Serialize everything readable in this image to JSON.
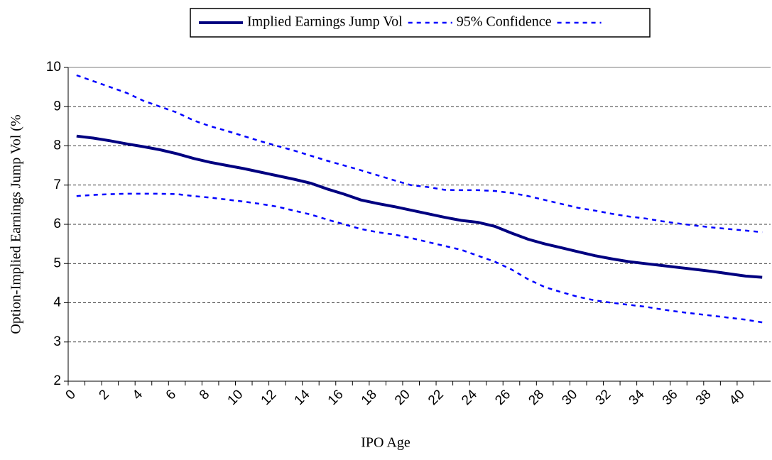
{
  "chart_data": {
    "type": "line",
    "xlabel": "IPO Age",
    "ylabel": "Option-Implied Earnings Jump Vol (%",
    "categories": [
      "0",
      null,
      "2",
      null,
      "4",
      null,
      "6",
      null,
      "8",
      null,
      "10",
      null,
      "12",
      null,
      "14",
      null,
      "16",
      null,
      "18",
      null,
      "20",
      null,
      "22",
      null,
      "24",
      null,
      "26",
      null,
      "28",
      null,
      "30",
      null,
      "32",
      null,
      "34",
      null,
      "36",
      null,
      "38",
      null,
      "40",
      null
    ],
    "series": [
      {
        "name": "Implied Earnings Jump Vol",
        "color": "#000080",
        "style": "solid",
        "values": [
          8.25,
          8.2,
          8.13,
          8.05,
          7.98,
          7.9,
          7.8,
          7.68,
          7.58,
          7.5,
          7.42,
          7.33,
          7.24,
          7.15,
          7.05,
          6.9,
          6.77,
          6.62,
          6.53,
          6.45,
          6.36,
          6.27,
          6.18,
          6.1,
          6.05,
          5.95,
          5.78,
          5.62,
          5.5,
          5.4,
          5.3,
          5.2,
          5.12,
          5.05,
          5.0,
          4.95,
          4.9,
          4.85,
          4.8,
          4.74,
          4.68,
          4.65
        ]
      },
      {
        "name": "95% Confidence",
        "color": "#0000ff",
        "style": "dashed",
        "values": [
          9.8,
          9.65,
          9.5,
          9.35,
          9.15,
          9.0,
          8.85,
          8.65,
          8.5,
          8.38,
          8.25,
          8.12,
          8.0,
          7.88,
          7.75,
          7.62,
          7.5,
          7.38,
          7.25,
          7.12,
          7.0,
          6.95,
          6.88,
          6.87,
          6.87,
          6.85,
          6.8,
          6.72,
          6.62,
          6.52,
          6.42,
          6.35,
          6.27,
          6.2,
          6.15,
          6.08,
          6.02,
          5.97,
          5.92,
          5.88,
          5.84,
          5.8
        ]
      },
      {
        "color": "#0000ff",
        "style": "dashed",
        "values": [
          6.72,
          6.75,
          6.77,
          6.78,
          6.78,
          6.78,
          6.77,
          6.72,
          6.68,
          6.63,
          6.58,
          6.52,
          6.45,
          6.35,
          6.25,
          6.12,
          6.0,
          5.88,
          5.8,
          5.74,
          5.65,
          5.55,
          5.45,
          5.35,
          5.2,
          5.05,
          4.85,
          4.6,
          4.4,
          4.27,
          4.15,
          4.06,
          4.0,
          3.95,
          3.9,
          3.83,
          3.77,
          3.72,
          3.67,
          3.62,
          3.57,
          3.5
        ]
      }
    ],
    "ylim": [
      2,
      10
    ],
    "yticks": [
      2,
      3,
      4,
      5,
      6,
      7,
      8,
      9,
      10
    ],
    "grid": true,
    "legend": "top"
  }
}
